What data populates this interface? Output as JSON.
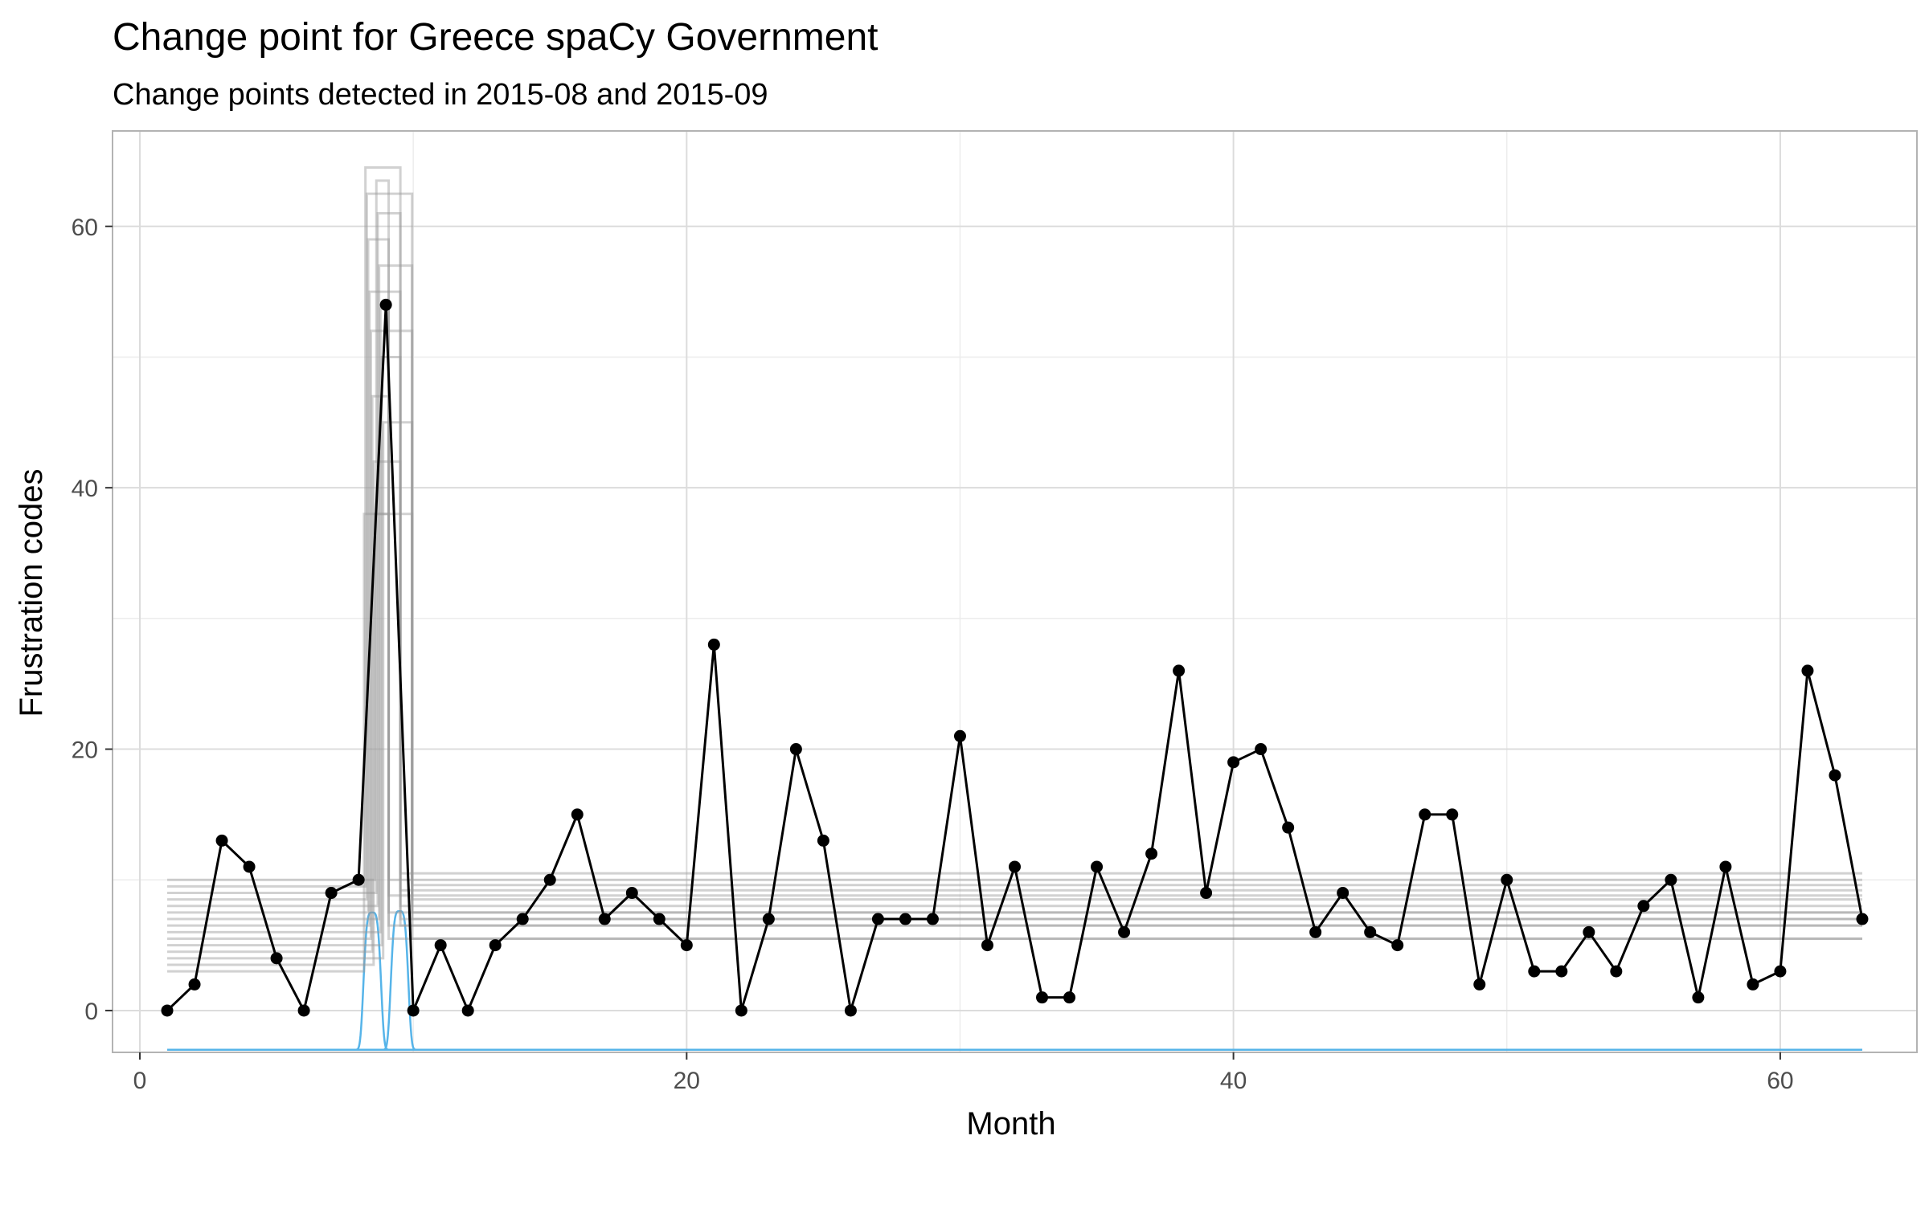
{
  "chart_data": {
    "type": "line",
    "title": "Change point for Greece spaCy Government",
    "subtitle": "Change points detected in 2015-08 and 2015-09",
    "xlabel": "Month",
    "ylabel": "Frustration codes",
    "xlim": [
      -1.0,
      65.0
    ],
    "ylim": [
      -3.2,
      67.3
    ],
    "x_ticks": [
      0,
      20,
      40,
      60
    ],
    "y_ticks": [
      0,
      20,
      40,
      60
    ],
    "x_minor_ticks": [
      10,
      30,
      50
    ],
    "y_minor_ticks": [
      10,
      30,
      50
    ],
    "grid": true,
    "colors": {
      "data": "#000000",
      "segments": "#999999",
      "density": "#56b4e9",
      "grid_major": "#dcdcdc",
      "grid_minor": "#ececec",
      "border": "#b3b3b3"
    },
    "series": [
      {
        "x": [
          1,
          2,
          3,
          4,
          5,
          6,
          7,
          8,
          9,
          10,
          11,
          12,
          13,
          14,
          15,
          16,
          17,
          18,
          19,
          20,
          21,
          22,
          23,
          24,
          25,
          26,
          27,
          28,
          29,
          30,
          31,
          32,
          33,
          34,
          35,
          36,
          37,
          38,
          39,
          40,
          41,
          42,
          43,
          44,
          45,
          46,
          47,
          48,
          49,
          50,
          51,
          52,
          53,
          54,
          55,
          56,
          57,
          58,
          59,
          60,
          61,
          62,
          63
        ],
        "y": [
          0,
          2,
          13,
          11,
          4,
          0,
          9,
          10,
          54,
          0,
          5,
          0,
          5,
          7,
          10,
          15,
          7,
          9,
          7,
          5,
          28,
          0,
          7,
          20,
          13,
          0,
          7,
          7,
          7,
          21,
          5,
          11,
          1,
          1,
          11,
          6,
          12,
          26,
          9,
          19,
          20,
          14,
          6,
          9,
          6,
          5,
          15,
          15,
          2,
          10,
          3,
          3,
          6,
          3,
          8,
          10,
          1,
          11,
          2,
          3,
          26,
          18,
          7
        ]
      }
    ],
    "change_point_samples": {
      "before_levels": [
        3.0,
        3.5,
        4.0,
        4.5,
        5.0,
        5.5,
        6.0,
        6.5,
        7.0,
        7.5,
        8.0,
        8.5,
        9.0,
        9.5,
        10.0
      ],
      "between_levels": [
        38,
        42,
        45,
        47,
        50,
        52,
        54,
        55,
        57,
        59,
        61,
        62.5,
        63.5,
        64.5
      ],
      "after_levels": [
        5.5,
        6.5,
        7.0,
        7.5,
        8.0,
        8.5,
        8.8,
        9.2,
        9.6,
        10.0,
        10.5
      ],
      "cp1_range": [
        8.2,
        8.9
      ],
      "cp2_range": [
        9.1,
        10.3
      ],
      "x_start": 1,
      "x_end": 63
    },
    "change_point_density": {
      "baseline": -3.0,
      "peaks": [
        {
          "center": 8.5,
          "height": 7.5,
          "spread": 0.35
        },
        {
          "center": 9.5,
          "height": 7.6,
          "spread": 0.35
        }
      ],
      "x_start": 1,
      "x_end": 63
    }
  }
}
